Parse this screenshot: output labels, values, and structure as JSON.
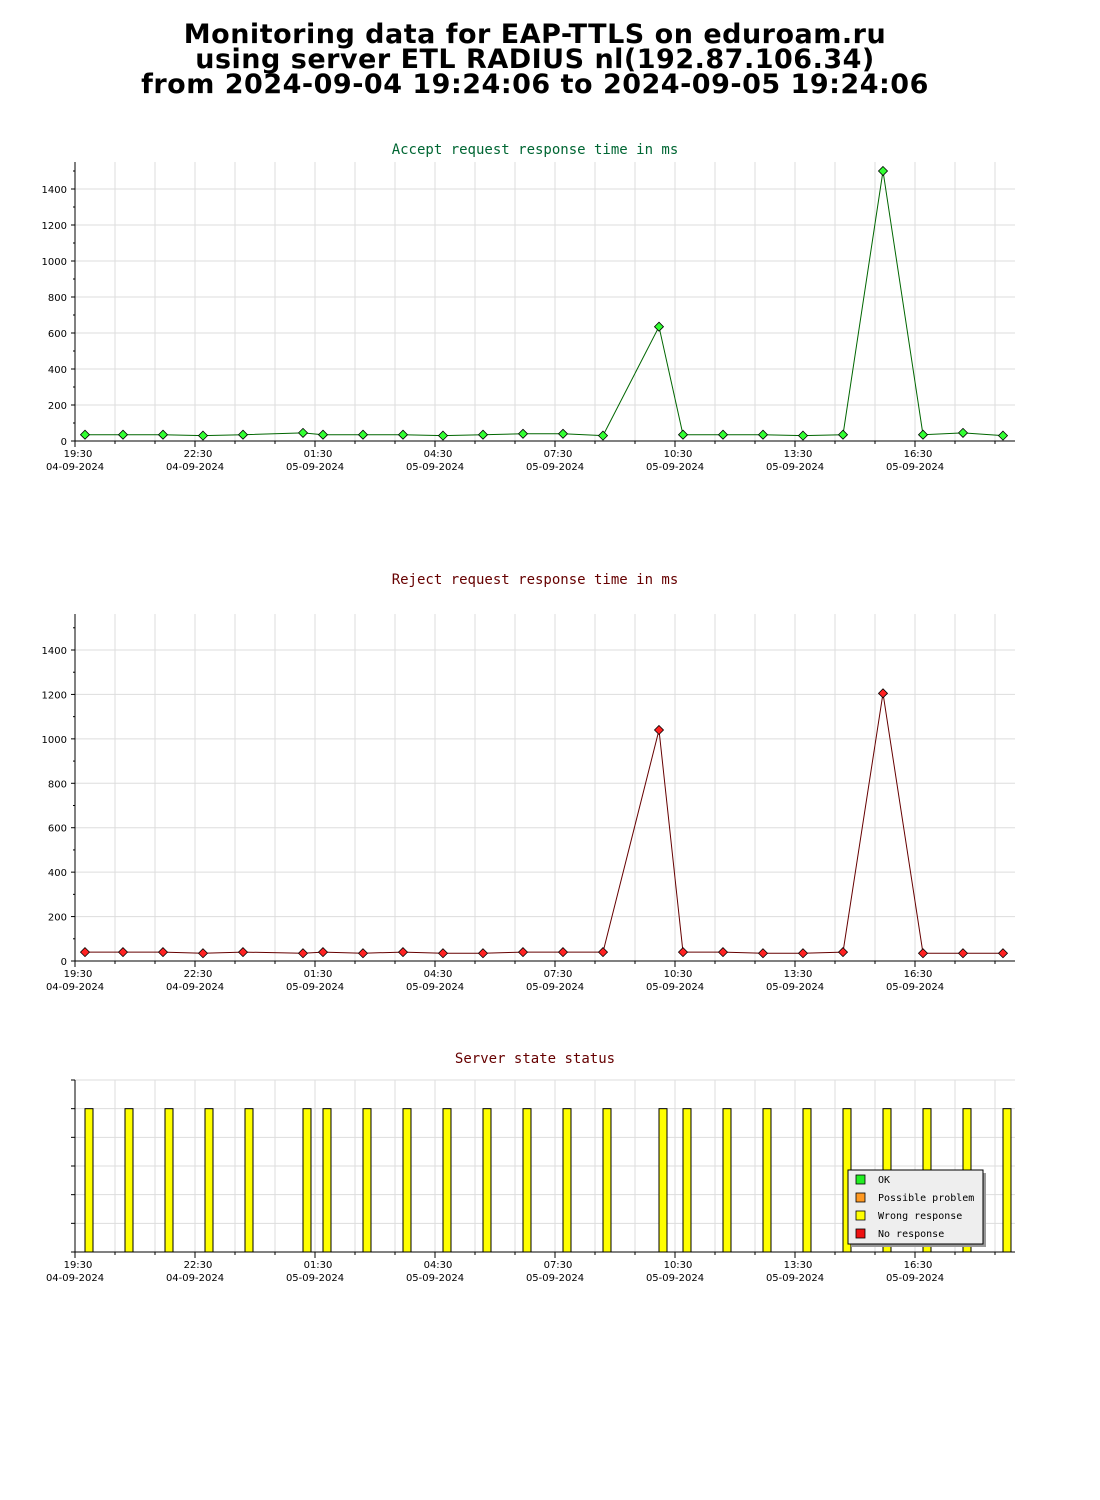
{
  "page": {
    "title_line1": "Monitoring data for EAP-TTLS on eduroam.ru",
    "title_line2": "using server ETL RADIUS nl(192.87.106.34)",
    "title_line3": "from 2024-09-04 19:24:06 to 2024-09-05 19:24:06"
  },
  "colors": {
    "accept_line": "#006600",
    "accept_marker": "#33ff33",
    "reject_line": "#660000",
    "reject_marker": "#ff2222",
    "state_bar": "#ffff00",
    "grid": "#dddddd"
  },
  "chart_data": [
    {
      "type": "line",
      "title": "Accept request response time in ms",
      "title_color": "#006633",
      "xlim": [
        0,
        23.5
      ],
      "ylim": [
        0,
        1500
      ],
      "yticks": [
        0,
        200,
        400,
        600,
        800,
        1000,
        1200,
        1400
      ],
      "x_ticks": [
        {
          "x": 0,
          "time": "19:30",
          "date": "04-09-2024"
        },
        {
          "x": 3,
          "time": "22:30",
          "date": "04-09-2024"
        },
        {
          "x": 6,
          "time": "01:30",
          "date": "05-09-2024"
        },
        {
          "x": 9,
          "time": "04:30",
          "date": "05-09-2024"
        },
        {
          "x": 12,
          "time": "07:30",
          "date": "05-09-2024"
        },
        {
          "x": 15,
          "time": "10:30",
          "date": "05-09-2024"
        },
        {
          "x": 18,
          "time": "13:30",
          "date": "05-09-2024"
        },
        {
          "x": 21,
          "time": "16:30",
          "date": "05-09-2024"
        }
      ],
      "series": [
        {
          "x": [
            0.25,
            1.2,
            2.2,
            3.2,
            4.2,
            5.7,
            6.2,
            7.2,
            8.2,
            9.2,
            10.2,
            11.2,
            12.2,
            13.2,
            14.6,
            15.2,
            16.2,
            17.2,
            18.2,
            19.2,
            20.2,
            21.2,
            22.2,
            23.2
          ],
          "values": [
            35,
            35,
            35,
            30,
            35,
            45,
            35,
            35,
            35,
            30,
            35,
            40,
            40,
            30,
            635,
            35,
            35,
            35,
            30,
            35,
            1500,
            35,
            45,
            30
          ]
        }
      ]
    },
    {
      "type": "line",
      "title": "Reject request response time in ms",
      "title_color": "#660000",
      "xlim": [
        0,
        23.5
      ],
      "ylim": [
        0,
        1560
      ],
      "yticks": [
        0,
        200,
        400,
        600,
        800,
        1000,
        1200,
        1400
      ],
      "x_ticks": [
        {
          "x": 0,
          "time": "19:30",
          "date": "04-09-2024"
        },
        {
          "x": 3,
          "time": "22:30",
          "date": "04-09-2024"
        },
        {
          "x": 6,
          "time": "01:30",
          "date": "05-09-2024"
        },
        {
          "x": 9,
          "time": "04:30",
          "date": "05-09-2024"
        },
        {
          "x": 12,
          "time": "07:30",
          "date": "05-09-2024"
        },
        {
          "x": 15,
          "time": "10:30",
          "date": "05-09-2024"
        },
        {
          "x": 18,
          "time": "13:30",
          "date": "05-09-2024"
        },
        {
          "x": 21,
          "time": "16:30",
          "date": "05-09-2024"
        }
      ],
      "series": [
        {
          "x": [
            0.25,
            1.2,
            2.2,
            3.2,
            4.2,
            5.7,
            6.2,
            7.2,
            8.2,
            9.2,
            10.2,
            11.2,
            12.2,
            13.2,
            14.6,
            15.2,
            16.2,
            17.2,
            18.2,
            19.2,
            20.2,
            21.2,
            22.2,
            23.2
          ],
          "values": [
            40,
            40,
            40,
            35,
            40,
            35,
            40,
            35,
            40,
            35,
            35,
            40,
            40,
            40,
            1040,
            40,
            40,
            35,
            35,
            40,
            1205,
            35,
            35,
            35
          ]
        }
      ]
    },
    {
      "type": "bar",
      "title": "Server state status",
      "title_color": "#660000",
      "xlim": [
        0,
        23.5
      ],
      "ylim": [
        0,
        6
      ],
      "x_ticks": [
        {
          "x": 0,
          "time": "19:30",
          "date": "04-09-2024"
        },
        {
          "x": 3,
          "time": "22:30",
          "date": "04-09-2024"
        },
        {
          "x": 6,
          "time": "01:30",
          "date": "05-09-2024"
        },
        {
          "x": 9,
          "time": "04:30",
          "date": "05-09-2024"
        },
        {
          "x": 12,
          "time": "07:30",
          "date": "05-09-2024"
        },
        {
          "x": 15,
          "time": "10:30",
          "date": "05-09-2024"
        },
        {
          "x": 18,
          "time": "13:30",
          "date": "05-09-2024"
        },
        {
          "x": 21,
          "time": "16:30",
          "date": "05-09-2024"
        }
      ],
      "series": [
        {
          "name": "Wrong response",
          "x": [
            0.35,
            1.35,
            2.35,
            3.35,
            4.35,
            5.8,
            6.3,
            7.3,
            8.3,
            9.3,
            10.3,
            11.3,
            12.3,
            13.3,
            14.7,
            15.3,
            16.3,
            17.3,
            18.3,
            19.3,
            20.3,
            21.3,
            22.3,
            23.3
          ],
          "values": [
            5,
            5,
            5,
            5,
            5,
            5,
            5,
            5,
            5,
            5,
            5,
            5,
            5,
            5,
            5,
            5,
            5,
            5,
            5,
            5,
            5,
            5,
            5,
            5
          ]
        }
      ],
      "legend": {
        "position": "bottom-right",
        "items": [
          {
            "label": "OK",
            "color": "#22ee22"
          },
          {
            "label": "Possible problem",
            "color": "#ff9922"
          },
          {
            "label": "Wrong response",
            "color": "#ffff00"
          },
          {
            "label": "No response",
            "color": "#ee1111"
          }
        ]
      }
    }
  ]
}
